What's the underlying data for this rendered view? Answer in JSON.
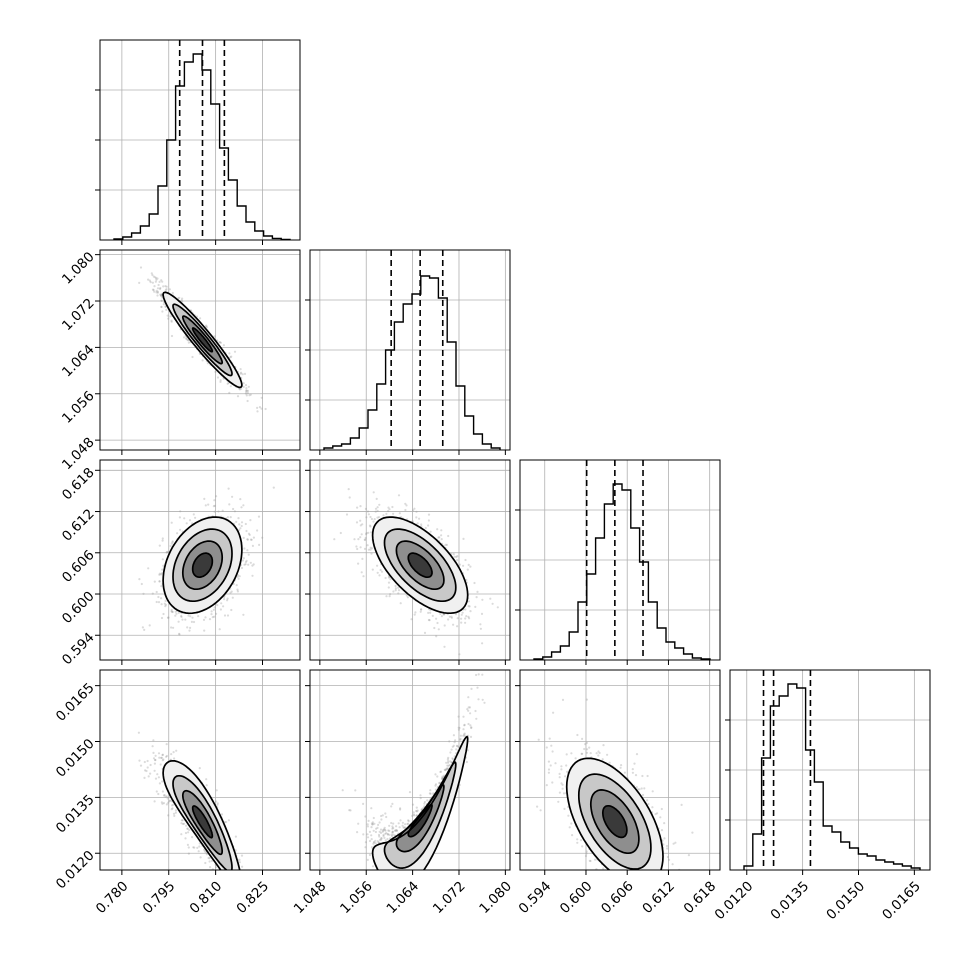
{
  "chart_data": {
    "type": "corner",
    "parameters": [
      {
        "ticks": [
          0.78,
          0.795,
          0.81,
          0.825
        ],
        "tick_labels": [
          "0.780",
          "0.795",
          "0.810",
          "0.825"
        ],
        "range": [
          0.773,
          0.837
        ],
        "quantiles": [
          0.7985,
          0.8058,
          0.8128
        ],
        "hist_y_ticks": [
          0.25,
          0.5,
          0.75
        ]
      },
      {
        "ticks": [
          1.048,
          1.056,
          1.064,
          1.072,
          1.08
        ],
        "tick_labels": [
          "1.048",
          "1.056",
          "1.064",
          "1.072",
          "1.080"
        ],
        "range": [
          1.0463,
          1.0808
        ],
        "quantiles": [
          1.0603,
          1.0653,
          1.0692
        ],
        "hist_y_ticks": [
          0.25,
          0.5,
          0.75
        ]
      },
      {
        "ticks": [
          0.594,
          0.6,
          0.606,
          0.612,
          0.618
        ],
        "tick_labels": [
          "0.594",
          "0.600",
          "0.606",
          "0.612",
          "0.618"
        ],
        "range": [
          0.5904,
          0.6195
        ],
        "quantiles": [
          0.6001,
          0.6042,
          0.6083
        ],
        "hist_y_ticks": [
          0.25,
          0.5,
          0.75
        ]
      },
      {
        "ticks": [
          0.012,
          0.0135,
          0.015,
          0.0165
        ],
        "tick_labels": [
          "0.0120",
          "0.0135",
          "0.0150",
          "0.0165"
        ],
        "range": [
          0.01155,
          0.01692
        ],
        "quantiles": [
          0.01245,
          0.01272,
          0.01371
        ],
        "hist_y_ticks": [
          0.25,
          0.5,
          0.75
        ]
      }
    ],
    "histograms": [
      [
        0.005,
        0.015,
        0.035,
        0.07,
        0.13,
        0.27,
        0.5,
        0.77,
        0.89,
        0.93,
        0.85,
        0.68,
        0.46,
        0.3,
        0.17,
        0.09,
        0.045,
        0.02,
        0.008,
        0.003
      ],
      [
        0.01,
        0.02,
        0.03,
        0.06,
        0.11,
        0.2,
        0.33,
        0.5,
        0.64,
        0.73,
        0.78,
        0.87,
        0.86,
        0.76,
        0.54,
        0.32,
        0.17,
        0.08,
        0.03,
        0.01
      ],
      [
        0.005,
        0.015,
        0.04,
        0.07,
        0.14,
        0.29,
        0.43,
        0.61,
        0.78,
        0.88,
        0.85,
        0.66,
        0.49,
        0.29,
        0.16,
        0.09,
        0.06,
        0.03,
        0.01,
        0.005
      ],
      [
        0.02,
        0.18,
        0.56,
        0.82,
        0.87,
        0.93,
        0.91,
        0.6,
        0.44,
        0.22,
        0.19,
        0.14,
        0.11,
        0.08,
        0.07,
        0.05,
        0.04,
        0.03,
        0.02,
        0.01
      ]
    ],
    "pairs": [
      {
        "row": 1,
        "col": 0,
        "center": [
          0.8058,
          1.0653
        ],
        "sd": [
          0.0063,
          0.0041
        ],
        "corr": -0.95
      },
      {
        "row": 2,
        "col": 0,
        "center": [
          0.8058,
          0.6042
        ],
        "sd": [
          0.0063,
          0.0035
        ],
        "corr": 0.32
      },
      {
        "row": 2,
        "col": 1,
        "center": [
          1.0653,
          0.6042
        ],
        "sd": [
          0.0041,
          0.0035
        ],
        "corr": -0.62
      },
      {
        "row": 3,
        "col": 0,
        "center": [
          0.8058,
          0.01285
        ],
        "sd": [
          0.0063,
          0.00085
        ],
        "corr": -0.88
      },
      {
        "row": 3,
        "col": 1,
        "center": [
          1.0653,
          0.01285
        ],
        "sd": [
          0.0041,
          0.00085
        ],
        "corr": 0.9
      },
      {
        "row": 3,
        "col": 2,
        "center": [
          0.6042,
          0.01285
        ],
        "sd": [
          0.0035,
          0.00085
        ],
        "corr": -0.55
      }
    ],
    "contour_levels_sigma": [
      0.5,
      1.0,
      1.5,
      2.0
    ],
    "grid": true
  }
}
